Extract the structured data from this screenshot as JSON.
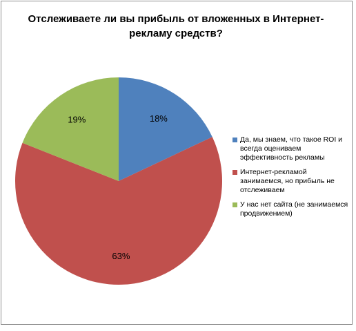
{
  "chart_data": {
    "type": "pie",
    "title": "Отслеживаете ли вы прибыль от вложенных в Интернет-рекламу средств?",
    "categories": [
      "Да, мы знаем, что такое ROI и всегда оцениваем эффективность рекламы",
      "Интернет-рекламой занимаемся, но прибыль не отслеживаем",
      "У нас нет сайта (не занимаемся продвижением)"
    ],
    "values": [
      18,
      63,
      19
    ],
    "data_labels": [
      "18%",
      "63%",
      "19%"
    ],
    "colors": [
      "#4f81bd",
      "#c0504d",
      "#9bbb59"
    ],
    "legend_position": "right"
  }
}
